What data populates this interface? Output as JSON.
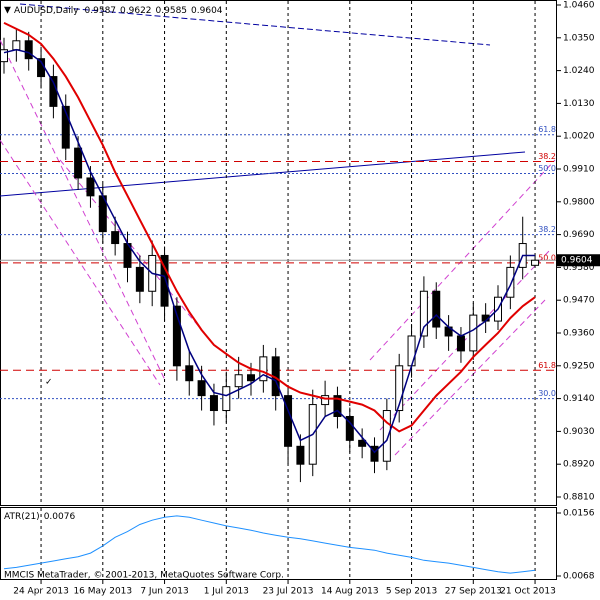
{
  "chart_data": {
    "type": "candlestick",
    "title": "AUDUSD,Daily",
    "categories": [
      null,
      null,
      null,
      "24 Apr 2013",
      null,
      null,
      null,
      null,
      "16 May 2013",
      null,
      null,
      null,
      null,
      "7 Jun 2013",
      null,
      null,
      null,
      null,
      "1 Jul 2013",
      null,
      null,
      null,
      null,
      "23 Jul 2013",
      null,
      null,
      null,
      null,
      "14 Aug 2013",
      null,
      null,
      null,
      null,
      "5 Sep 2013",
      null,
      null,
      null,
      null,
      "27 Sep 2013",
      null,
      null,
      null,
      null,
      "21 Oct 2013"
    ],
    "open": [
      1.027,
      1.031,
      1.034,
      1.028,
      1.022,
      1.012,
      0.998,
      0.988,
      0.982,
      0.97,
      0.966,
      0.958,
      0.95,
      0.962,
      0.945,
      0.925,
      0.92,
      0.915,
      0.91,
      0.918,
      0.922,
      0.92,
      0.928,
      0.915,
      0.898,
      0.892,
      0.912,
      0.915,
      0.908,
      0.9,
      0.898,
      0.893,
      0.91,
      0.925,
      0.935,
      0.95,
      0.938,
      0.935,
      0.93,
      0.942,
      0.94,
      0.948,
      0.958,
      0.9587
    ],
    "high": [
      1.035,
      1.038,
      1.037,
      1.032,
      1.026,
      1.016,
      1.002,
      0.992,
      0.986,
      0.975,
      0.97,
      0.962,
      0.967,
      0.965,
      0.948,
      0.93,
      0.925,
      0.919,
      0.923,
      0.928,
      0.926,
      0.932,
      0.931,
      0.918,
      0.902,
      0.917,
      0.92,
      0.918,
      0.911,
      0.904,
      0.901,
      0.914,
      0.929,
      0.939,
      0.955,
      0.953,
      0.942,
      0.938,
      0.946,
      0.946,
      0.952,
      0.962,
      0.975,
      0.9622
    ],
    "low": [
      1.023,
      1.027,
      1.024,
      1.018,
      1.008,
      0.994,
      0.984,
      0.978,
      0.966,
      0.962,
      0.953,
      0.946,
      0.945,
      0.94,
      0.92,
      0.915,
      0.91,
      0.905,
      0.906,
      0.914,
      0.915,
      0.916,
      0.91,
      0.892,
      0.886,
      0.888,
      0.908,
      0.904,
      0.896,
      0.894,
      0.889,
      0.89,
      0.906,
      0.921,
      0.931,
      0.934,
      0.93,
      0.926,
      0.927,
      0.936,
      0.937,
      0.944,
      0.954,
      0.9585
    ],
    "close": [
      1.031,
      1.034,
      1.028,
      1.022,
      1.012,
      0.998,
      0.988,
      0.982,
      0.97,
      0.966,
      0.958,
      0.95,
      0.962,
      0.945,
      0.925,
      0.92,
      0.915,
      0.91,
      0.918,
      0.922,
      0.92,
      0.928,
      0.915,
      0.898,
      0.892,
      0.912,
      0.915,
      0.908,
      0.9,
      0.898,
      0.893,
      0.91,
      0.925,
      0.935,
      0.95,
      0.938,
      0.935,
      0.93,
      0.942,
      0.94,
      0.948,
      0.958,
      0.966,
      0.9604
    ],
    "series": [
      {
        "color": "#e00000",
        "values": [
          1.04,
          1.038,
          1.036,
          1.033,
          1.028,
          1.022,
          1.015,
          1.007,
          0.999,
          0.99,
          0.982,
          0.974,
          0.966,
          0.958,
          0.95,
          0.943,
          0.937,
          0.932,
          0.929,
          0.926,
          0.924,
          0.923,
          0.921,
          0.918,
          0.916,
          0.915,
          0.914,
          0.914,
          0.913,
          0.912,
          0.91,
          0.906,
          0.903,
          0.905,
          0.91,
          0.915,
          0.919,
          0.923,
          0.928,
          0.932,
          0.936,
          0.941,
          0.945,
          0.948
        ]
      },
      {
        "color": "#000080",
        "values": [
          1.03,
          1.031,
          1.03,
          1.027,
          1.02,
          1.01,
          1.0,
          0.99,
          0.982,
          0.974,
          0.966,
          0.96,
          0.956,
          0.955,
          0.942,
          0.93,
          0.922,
          0.916,
          0.915,
          0.917,
          0.919,
          0.922,
          0.92,
          0.91,
          0.9,
          0.902,
          0.908,
          0.91,
          0.906,
          0.901,
          0.896,
          0.9,
          0.912,
          0.925,
          0.938,
          0.942,
          0.938,
          0.935,
          0.937,
          0.94,
          0.944,
          0.952,
          0.962,
          0.962
        ]
      }
    ],
    "ylim": [
      0.881,
      1.046
    ],
    "yticks": [
      {
        "value": 1.046,
        "label": "1.0460"
      },
      {
        "value": 1.035,
        "label": "1.0350"
      },
      {
        "value": 1.024,
        "label": "1.0240"
      },
      {
        "value": 1.013,
        "label": "1.0130"
      },
      {
        "value": 1.002,
        "label": "1.0020"
      },
      {
        "value": 0.991,
        "label": "0.9910"
      },
      {
        "value": 0.98,
        "label": "0.9800"
      },
      {
        "value": 0.969,
        "label": "0.9690"
      },
      {
        "value": 0.958,
        "label": "0.9580"
      },
      {
        "value": 0.947,
        "label": "0.9470"
      },
      {
        "value": 0.936,
        "label": "0.9360"
      },
      {
        "value": 0.925,
        "label": "0.9250"
      },
      {
        "value": 0.914,
        "label": "0.9140"
      },
      {
        "value": 0.903,
        "label": "0.9030"
      },
      {
        "value": 0.892,
        "label": "0.8920"
      },
      {
        "value": 0.881,
        "label": "0.8810"
      }
    ],
    "levels": [
      {
        "label": "61.8",
        "price": 1.0025,
        "color": "#3050c0",
        "style": "dotted"
      },
      {
        "label": "38.2",
        "price": 0.9935,
        "color": "#d00000",
        "style": "dashed"
      },
      {
        "label": "50.0",
        "price": 0.9895,
        "color": "#3050c0",
        "style": "dotted"
      },
      {
        "label": "38.2",
        "price": 0.969,
        "color": "#3050c0",
        "style": "dotted"
      },
      {
        "label": "50.0",
        "price": 0.9595,
        "color": "#d00000",
        "style": "dashed"
      },
      {
        "label": "61.8",
        "price": 0.9235,
        "color": "#d00000",
        "style": "dashed"
      },
      {
        "label": "30.0",
        "price": 0.914,
        "color": "#3050c0",
        "style": "dotted"
      }
    ],
    "indicator": {
      "name": "ATR(21)",
      "color": "#1e90ff",
      "values": [
        0.0078,
        0.008,
        0.0083,
        0.0086,
        0.0089,
        0.0092,
        0.0095,
        0.01,
        0.011,
        0.0122,
        0.013,
        0.014,
        0.0146,
        0.015,
        0.0152,
        0.015,
        0.0146,
        0.0142,
        0.0138,
        0.0135,
        0.0132,
        0.0128,
        0.0125,
        0.0122,
        0.012,
        0.0117,
        0.0114,
        0.0111,
        0.0108,
        0.0106,
        0.0104,
        0.01,
        0.0097,
        0.0094,
        0.009,
        0.0088,
        0.0086,
        0.0083,
        0.008,
        0.0077,
        0.0074,
        0.0072,
        0.0074,
        0.0076
      ],
      "ylim": [
        0.0068,
        0.0156
      ],
      "yticks": [
        0.0156,
        0.0068
      ]
    },
    "footer": "MMCIS MetaTrader, © 2001-2013, MetaQuotes Software Corp."
  }
}
